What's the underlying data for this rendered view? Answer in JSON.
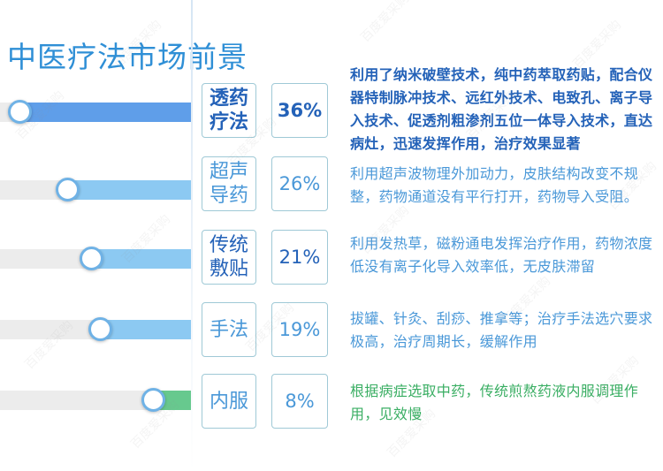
{
  "title": "中医疗法市场前景",
  "watermark": "百度爱采购",
  "colors": {
    "title": "#2f8fd6",
    "fill_blue_dark": "#5f9ee9",
    "fill_blue": "#8cc9f2",
    "fill_green": "#67c98e",
    "track": "#ececec",
    "text_dark": "#2462b8",
    "text_blue": "#4a98d8",
    "text_green": "#3aae63"
  },
  "chart_data": {
    "type": "bar",
    "categories": [
      "透药疗法",
      "超声导药",
      "传统敷贴",
      "手法",
      "内服"
    ],
    "values": [
      36,
      26,
      21,
      19,
      8
    ],
    "value_labels": [
      "36%",
      "26%",
      "21%",
      "19%",
      "8%"
    ],
    "unit": "%",
    "xlim": [
      0,
      40
    ],
    "rows": [
      {
        "name_line1": "透药",
        "name_line2": "疗法",
        "pct": "36%",
        "desc": "利用了纳米破壁技术，纯中药萃取药贴，配合仪器特制脉冲技术、远红外技术、电致孔、离子导入技术、促透剂粗渗剂五位一体导入技术，直达病灶，迅速发挥作用，治疗效果显著"
      },
      {
        "name_line1": "超声",
        "name_line2": "导药",
        "pct": "26%",
        "desc": "利用超声波物理外加动力，皮肤结构改变不规整，药物通道没有平行打开，药物导入受阻。"
      },
      {
        "name_line1": "传统",
        "name_line2": "敷贴",
        "pct": "21%",
        "desc": "利用发热草，磁粉通电发挥治疗作用，药物浓度低没有离子化导入效率低，无皮肤滞留"
      },
      {
        "name_line1": "手法",
        "name_line2": "",
        "pct": "19%",
        "desc": "拔罐、针灸、刮痧、推拿等；治疗手法选穴要求极高，治疗周期长，缓解作用"
      },
      {
        "name_line1": "内服",
        "name_line2": "",
        "pct": "8%",
        "desc": "根据病症选取中药，传统煎熬药液内服调理作用，见效慢"
      }
    ]
  }
}
